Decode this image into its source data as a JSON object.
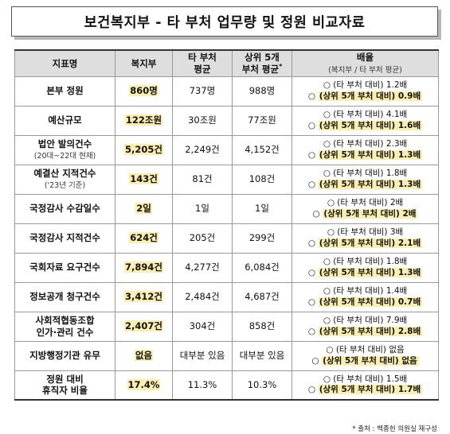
{
  "title": "보건복지부 - 타 부처 업무량 및 정원 비교자료",
  "headers": {
    "indicator": "지표명",
    "welfare": "복지부",
    "other_avg_line1": "타 부처",
    "other_avg_line2": "평균",
    "top5_line1": "상위 5개",
    "top5_line2": "부처 평균",
    "top5_mark": "*",
    "ratio": "배율",
    "ratio_sub": "(복지부 / 타 부처 평균)"
  },
  "rows": [
    {
      "name": "본부 정원",
      "name_sub": "",
      "welfare": "860명",
      "other_avg": "737명",
      "top5_avg": "988명",
      "ratio_other": "○ (타 부처 대비) 1.2배",
      "ratio_top5_prefix": "○ ",
      "ratio_top5": "(상위 5개 부처 대비) 0.9배"
    },
    {
      "name": "예산규모",
      "name_sub": "",
      "welfare": "122조원",
      "other_avg": "30조원",
      "top5_avg": "77조원",
      "ratio_other": "○ (타 부처 대비) 4.1배",
      "ratio_top5_prefix": "○ ",
      "ratio_top5": "(상위 5개 부처 대비) 1.6배"
    },
    {
      "name": "법안 발의건수",
      "name_sub": "(20대~22대 현재)",
      "welfare": "5,205건",
      "other_avg": "2,249건",
      "top5_avg": "4,152건",
      "ratio_other": "○ (타 부처 대비) 2.3배",
      "ratio_top5_prefix": "○ ",
      "ratio_top5": "(상위 5개 부처 대비) 1.3배"
    },
    {
      "name": "예결산 지적건수",
      "name_sub": "('23년 기준)",
      "welfare": "143건",
      "other_avg": "81건",
      "top5_avg": "108건",
      "ratio_other": "○ (타 부처 대비) 1.8배",
      "ratio_top5_prefix": "○ ",
      "ratio_top5": "(상위 5개 부처 대비) 1.3배"
    },
    {
      "name": "국정감사 수감일수",
      "name_sub": "",
      "welfare": "2일",
      "other_avg": "1일",
      "top5_avg": "1일",
      "ratio_other": "○ (타 부처 대비) 2배",
      "ratio_top5_prefix": "○ ",
      "ratio_top5": "(상위 5개 부처 대비) 2배"
    },
    {
      "name": "국정감사 지적건수",
      "name_sub": "",
      "welfare": "624건",
      "other_avg": "205건",
      "top5_avg": "299건",
      "ratio_other": "○ (타 부처 대비) 3배",
      "ratio_top5_prefix": "○ ",
      "ratio_top5": "(상위 5개 부처 대비) 2.1배"
    },
    {
      "name": "국회자료 요구건수",
      "name_sub": "",
      "welfare": "7,894건",
      "other_avg": "4,277건",
      "top5_avg": "6,084건",
      "ratio_other": "○ (타 부처 대비) 1.8배",
      "ratio_top5_prefix": "○ ",
      "ratio_top5": "(상위 5개 부처 대비) 1.3배"
    },
    {
      "name": "정보공개 청구건수",
      "name_sub": "",
      "welfare": "3,412건",
      "other_avg": "2,484건",
      "top5_avg": "4,687건",
      "ratio_other": "○ (타 부처 대비) 1.4배",
      "ratio_top5_prefix": "○ ",
      "ratio_top5": "(상위 5개 부처 대비) 0.7배"
    },
    {
      "name": "사회적협동조합",
      "name_sub": "인가·관리 건수",
      "welfare": "2,407건",
      "other_avg": "304건",
      "top5_avg": "858건",
      "ratio_other": "○ (타 부처 대비) 7.9배",
      "ratio_top5_prefix": "○ ",
      "ratio_top5": "(상위 5개 부처 대비) 2.8배"
    },
    {
      "name": "지방행정기관 유무",
      "name_sub": "",
      "welfare": "없음",
      "other_avg": "대부분 있음",
      "top5_avg": "대부분 있음",
      "ratio_other": "○ (타 부처 대비) 없음",
      "ratio_top5_prefix": "○ ",
      "ratio_top5": "(상위 5개 부처 대비) 없음"
    },
    {
      "name": "정원 대비",
      "name_sub": "휴직자 비율",
      "welfare": "17.4%",
      "other_avg": "11.3%",
      "top5_avg": "10.3%",
      "ratio_other": "○ (타 부처 대비) 1.5배",
      "ratio_top5_prefix": "○ ",
      "ratio_top5": "(상위 5개 부처 대비) 1.7배"
    }
  ],
  "source": "* 출처 : 백종헌 의원실 재구성",
  "highlight_color": "#fbefae"
}
